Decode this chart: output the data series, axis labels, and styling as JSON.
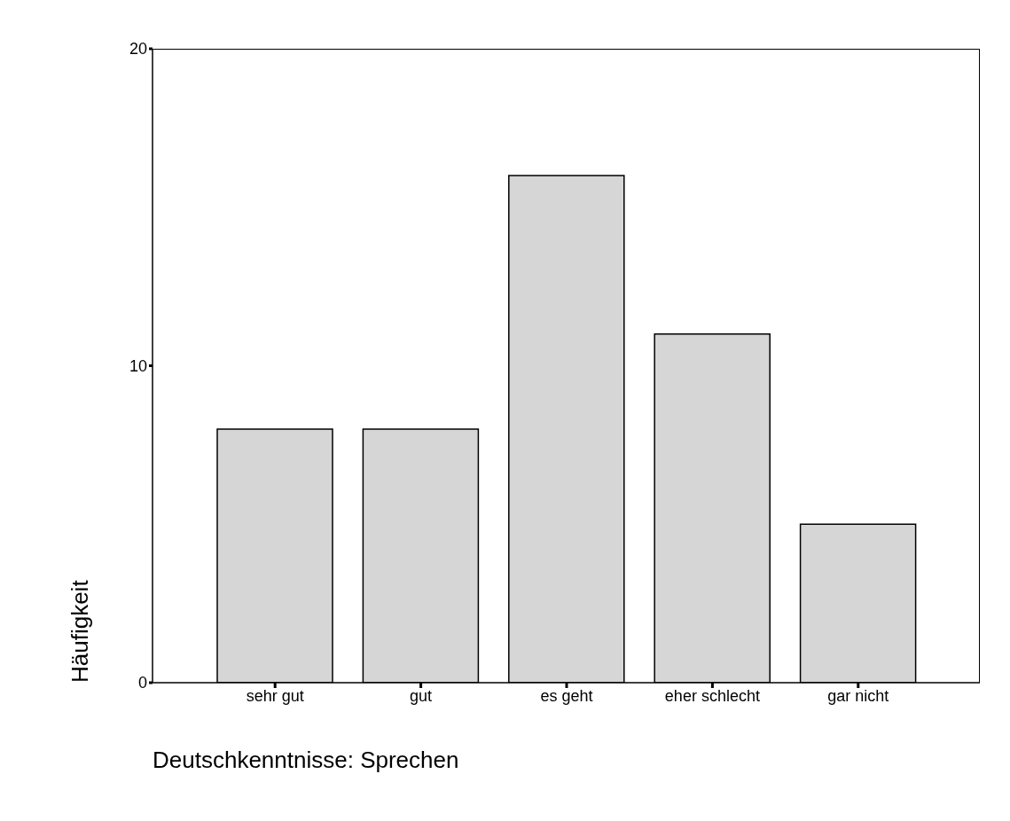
{
  "chart_data": {
    "type": "bar",
    "xlabel": "Deutschkenntnisse: Sprechen",
    "ylabel": "Häufigkeit",
    "categories": [
      "sehr gut",
      "gut",
      "es geht",
      "eher schlecht",
      "gar nicht"
    ],
    "values": [
      8,
      8,
      16,
      11,
      5
    ],
    "color": "#d6d6d6",
    "ylim": [
      0,
      20
    ],
    "yticks": [
      0,
      10,
      20
    ],
    "grid": false,
    "legend": false
  }
}
